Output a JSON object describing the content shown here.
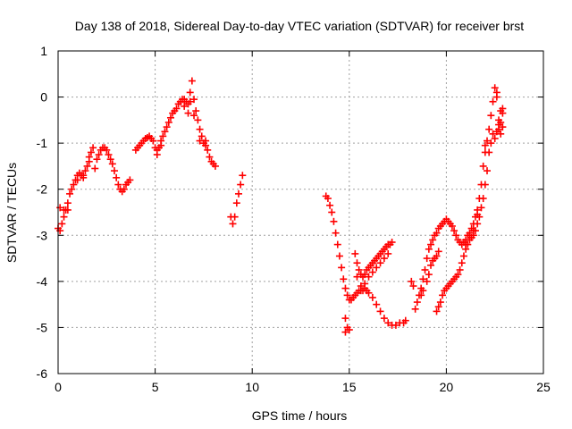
{
  "chart_data": {
    "type": "scatter",
    "title": "Day 138 of 2018, Sidereal Day-to-day VTEC variation (SDTVAR) for receiver brst",
    "xlabel": "GPS time / hours",
    "ylabel": "SDTVAR / TECUs",
    "xlim": [
      0,
      25
    ],
    "ylim": [
      -6,
      1
    ],
    "xticks": [
      0,
      5,
      10,
      15,
      20,
      25
    ],
    "yticks": [
      -6,
      -5,
      -4,
      -3,
      -2,
      -1,
      0,
      1
    ],
    "grid": true,
    "marker": "+",
    "color": "#ff0000",
    "series": [
      {
        "values": [
          [
            0.0,
            -2.85
          ],
          [
            0.1,
            -2.9
          ],
          [
            0.2,
            -2.75
          ],
          [
            0.3,
            -2.6
          ],
          [
            0.4,
            -2.45
          ],
          [
            0.5,
            -2.3
          ],
          [
            0.6,
            -2.1
          ],
          [
            0.7,
            -2.0
          ],
          [
            0.8,
            -1.9
          ],
          [
            0.9,
            -1.8
          ],
          [
            1.0,
            -1.7
          ],
          [
            1.1,
            -1.65
          ],
          [
            1.2,
            -1.7
          ],
          [
            1.3,
            -1.75
          ],
          [
            1.4,
            -1.6
          ],
          [
            1.5,
            -1.5
          ],
          [
            1.6,
            -1.3
          ],
          [
            1.7,
            -1.2
          ],
          [
            1.8,
            -1.1
          ],
          [
            0.1,
            -2.4
          ],
          [
            0.3,
            -2.45
          ],
          [
            0.5,
            -2.45
          ],
          [
            1.0,
            -1.8
          ],
          [
            1.3,
            -1.7
          ],
          [
            1.6,
            -1.4
          ],
          [
            1.9,
            -1.55
          ],
          [
            2.0,
            -1.35
          ],
          [
            2.1,
            -1.25
          ],
          [
            2.2,
            -1.15
          ],
          [
            2.3,
            -1.1
          ],
          [
            2.4,
            -1.1
          ],
          [
            2.5,
            -1.15
          ],
          [
            2.6,
            -1.25
          ],
          [
            2.7,
            -1.35
          ],
          [
            2.8,
            -1.45
          ],
          [
            2.9,
            -1.6
          ],
          [
            3.0,
            -1.75
          ],
          [
            3.1,
            -1.9
          ],
          [
            3.2,
            -2.0
          ],
          [
            3.3,
            -2.05
          ],
          [
            3.4,
            -2.0
          ],
          [
            3.5,
            -1.9
          ],
          [
            3.6,
            -1.85
          ],
          [
            3.7,
            -1.8
          ]
        ]
      },
      {
        "values": [
          [
            4.0,
            -1.15
          ],
          [
            4.1,
            -1.1
          ],
          [
            4.2,
            -1.05
          ],
          [
            4.3,
            -1.0
          ],
          [
            4.4,
            -0.95
          ],
          [
            4.5,
            -0.9
          ],
          [
            4.6,
            -0.88
          ],
          [
            4.7,
            -0.85
          ],
          [
            4.8,
            -0.9
          ],
          [
            4.9,
            -0.95
          ],
          [
            5.0,
            -1.1
          ],
          [
            5.1,
            -1.15
          ],
          [
            5.2,
            -1.1
          ],
          [
            5.3,
            -0.95
          ],
          [
            5.4,
            -0.85
          ],
          [
            5.5,
            -0.75
          ],
          [
            5.6,
            -0.65
          ],
          [
            5.7,
            -0.55
          ],
          [
            5.8,
            -0.45
          ],
          [
            5.9,
            -0.35
          ],
          [
            6.0,
            -0.3
          ],
          [
            6.1,
            -0.25
          ],
          [
            6.2,
            -0.15
          ],
          [
            6.3,
            -0.1
          ],
          [
            6.4,
            -0.05
          ],
          [
            6.5,
            -0.05
          ],
          [
            6.6,
            -0.1
          ],
          [
            6.7,
            -0.15
          ],
          [
            6.8,
            0.1
          ],
          [
            6.9,
            0.35
          ],
          [
            7.0,
            -0.05
          ],
          [
            7.1,
            -0.3
          ],
          [
            7.2,
            -0.5
          ],
          [
            7.3,
            -0.7
          ],
          [
            7.4,
            -0.85
          ],
          [
            7.5,
            -1.0
          ],
          [
            7.6,
            -1.05
          ],
          [
            7.7,
            -1.15
          ],
          [
            7.8,
            -1.3
          ],
          [
            7.9,
            -1.4
          ],
          [
            8.0,
            -1.45
          ],
          [
            8.1,
            -1.5
          ],
          [
            5.1,
            -1.25
          ],
          [
            5.3,
            -1.05
          ],
          [
            6.5,
            -0.2
          ],
          [
            6.7,
            -0.35
          ],
          [
            6.8,
            -0.1
          ],
          [
            7.0,
            -0.4
          ],
          [
            7.3,
            -0.95
          ],
          [
            7.6,
            -0.95
          ]
        ]
      },
      {
        "values": [
          [
            8.9,
            -2.6
          ],
          [
            9.0,
            -2.75
          ],
          [
            9.1,
            -2.6
          ],
          [
            9.2,
            -2.3
          ],
          [
            9.3,
            -2.1
          ],
          [
            9.4,
            -1.9
          ],
          [
            9.5,
            -1.7
          ]
        ]
      },
      {
        "values": [
          [
            13.8,
            -2.15
          ],
          [
            13.9,
            -2.2
          ],
          [
            14.0,
            -2.35
          ],
          [
            14.1,
            -2.5
          ],
          [
            14.2,
            -2.7
          ],
          [
            14.3,
            -2.95
          ],
          [
            14.4,
            -3.2
          ],
          [
            14.5,
            -3.45
          ],
          [
            14.6,
            -3.7
          ],
          [
            14.7,
            -3.95
          ],
          [
            14.8,
            -4.15
          ],
          [
            14.9,
            -4.3
          ],
          [
            15.0,
            -4.4
          ],
          [
            15.1,
            -4.4
          ],
          [
            15.2,
            -4.35
          ],
          [
            15.3,
            -4.3
          ],
          [
            15.4,
            -4.25
          ],
          [
            15.5,
            -4.2
          ],
          [
            15.6,
            -4.2
          ],
          [
            15.7,
            -4.2
          ],
          [
            15.8,
            -4.15
          ],
          [
            15.9,
            -4.2
          ],
          [
            16.0,
            -4.25
          ],
          [
            16.2,
            -4.35
          ],
          [
            16.4,
            -4.5
          ],
          [
            16.6,
            -4.65
          ],
          [
            16.8,
            -4.8
          ],
          [
            17.0,
            -4.9
          ],
          [
            17.2,
            -4.95
          ],
          [
            17.4,
            -4.95
          ],
          [
            17.6,
            -4.9
          ],
          [
            17.8,
            -4.9
          ],
          [
            17.9,
            -4.85
          ],
          [
            14.8,
            -4.8
          ],
          [
            14.9,
            -5.0
          ],
          [
            15.0,
            -5.05
          ],
          [
            14.8,
            -5.1
          ],
          [
            15.3,
            -3.4
          ],
          [
            15.4,
            -3.6
          ],
          [
            15.5,
            -3.75
          ],
          [
            15.6,
            -3.85
          ],
          [
            15.7,
            -3.9
          ],
          [
            15.8,
            -3.85
          ],
          [
            15.9,
            -3.75
          ],
          [
            16.0,
            -3.7
          ],
          [
            16.1,
            -3.65
          ],
          [
            16.2,
            -3.6
          ],
          [
            16.3,
            -3.55
          ],
          [
            16.4,
            -3.5
          ],
          [
            16.5,
            -3.45
          ],
          [
            16.6,
            -3.4
          ],
          [
            16.7,
            -3.35
          ],
          [
            16.8,
            -3.3
          ],
          [
            16.9,
            -3.25
          ],
          [
            17.0,
            -3.2
          ],
          [
            17.1,
            -3.2
          ],
          [
            17.2,
            -3.15
          ],
          [
            15.4,
            -3.9
          ],
          [
            15.6,
            -4.1
          ],
          [
            15.8,
            -4.05
          ],
          [
            16.0,
            -3.9
          ],
          [
            16.2,
            -3.8
          ],
          [
            16.4,
            -3.7
          ],
          [
            16.6,
            -3.6
          ],
          [
            16.8,
            -3.5
          ],
          [
            17.0,
            -3.4
          ]
        ]
      },
      {
        "values": [
          [
            18.2,
            -4.0
          ],
          [
            18.3,
            -4.1
          ],
          [
            18.4,
            -4.6
          ],
          [
            18.5,
            -4.45
          ],
          [
            18.6,
            -4.3
          ],
          [
            18.7,
            -4.15
          ],
          [
            18.8,
            -3.95
          ],
          [
            18.9,
            -3.75
          ],
          [
            19.0,
            -3.5
          ],
          [
            19.1,
            -3.3
          ],
          [
            19.2,
            -3.2
          ],
          [
            19.3,
            -3.1
          ],
          [
            19.4,
            -3.0
          ],
          [
            19.5,
            -2.95
          ],
          [
            19.6,
            -2.85
          ],
          [
            19.7,
            -2.8
          ],
          [
            19.8,
            -2.75
          ],
          [
            19.9,
            -2.7
          ],
          [
            20.0,
            -2.65
          ],
          [
            20.1,
            -2.7
          ],
          [
            20.2,
            -2.75
          ],
          [
            20.3,
            -2.8
          ],
          [
            20.4,
            -2.9
          ],
          [
            20.5,
            -3.0
          ],
          [
            20.6,
            -3.1
          ],
          [
            20.7,
            -3.15
          ],
          [
            20.8,
            -3.2
          ],
          [
            20.9,
            -3.15
          ],
          [
            21.0,
            -3.1
          ],
          [
            21.1,
            -3.0
          ],
          [
            21.2,
            -2.95
          ],
          [
            21.3,
            -2.85
          ],
          [
            21.4,
            -2.75
          ],
          [
            21.5,
            -2.6
          ],
          [
            21.6,
            -2.45
          ],
          [
            21.7,
            -2.2
          ],
          [
            21.8,
            -1.9
          ],
          [
            21.9,
            -1.5
          ],
          [
            22.0,
            -1.05
          ],
          [
            22.1,
            -0.95
          ],
          [
            22.2,
            -0.7
          ],
          [
            22.3,
            -0.4
          ],
          [
            22.4,
            -0.1
          ],
          [
            22.5,
            0.2
          ],
          [
            22.6,
            0.0
          ],
          [
            22.7,
            -0.5
          ],
          [
            22.8,
            -0.3
          ],
          [
            22.9,
            -0.35
          ],
          [
            18.7,
            -4.3
          ],
          [
            18.8,
            -4.2
          ],
          [
            19.0,
            -4.0
          ],
          [
            19.1,
            -3.85
          ],
          [
            19.2,
            -3.65
          ],
          [
            19.3,
            -3.55
          ],
          [
            19.4,
            -3.5
          ],
          [
            19.5,
            -3.45
          ],
          [
            19.6,
            -3.35
          ],
          [
            19.5,
            -4.65
          ],
          [
            19.6,
            -4.55
          ],
          [
            19.7,
            -4.45
          ],
          [
            19.8,
            -4.3
          ],
          [
            19.9,
            -4.2
          ],
          [
            20.0,
            -4.15
          ],
          [
            20.1,
            -4.1
          ],
          [
            20.2,
            -4.05
          ],
          [
            20.3,
            -4.0
          ],
          [
            20.4,
            -3.95
          ],
          [
            20.5,
            -3.9
          ],
          [
            20.6,
            -3.85
          ],
          [
            20.7,
            -3.75
          ],
          [
            20.8,
            -3.6
          ],
          [
            20.9,
            -3.45
          ],
          [
            21.0,
            -3.3
          ],
          [
            21.1,
            -3.2
          ],
          [
            21.2,
            -3.1
          ],
          [
            21.3,
            -3.05
          ],
          [
            21.4,
            -3.0
          ],
          [
            21.5,
            -2.9
          ],
          [
            21.6,
            -2.75
          ],
          [
            21.7,
            -2.6
          ],
          [
            21.8,
            -2.4
          ],
          [
            21.9,
            -2.2
          ],
          [
            22.0,
            -1.9
          ],
          [
            22.1,
            -1.6
          ],
          [
            22.2,
            -1.2
          ],
          [
            22.3,
            -1.0
          ],
          [
            22.4,
            -0.8
          ],
          [
            22.5,
            -0.9
          ],
          [
            22.6,
            -0.75
          ],
          [
            22.7,
            -0.6
          ],
          [
            22.8,
            -0.55
          ],
          [
            22.9,
            -0.25
          ],
          [
            21.0,
            -3.2
          ],
          [
            21.2,
            -3.0
          ],
          [
            21.4,
            -2.9
          ],
          [
            21.6,
            -2.55
          ],
          [
            22.0,
            -1.2
          ],
          [
            22.6,
            0.1
          ],
          [
            22.7,
            -0.7
          ],
          [
            22.8,
            -0.8
          ],
          [
            22.9,
            -0.65
          ]
        ]
      }
    ]
  }
}
